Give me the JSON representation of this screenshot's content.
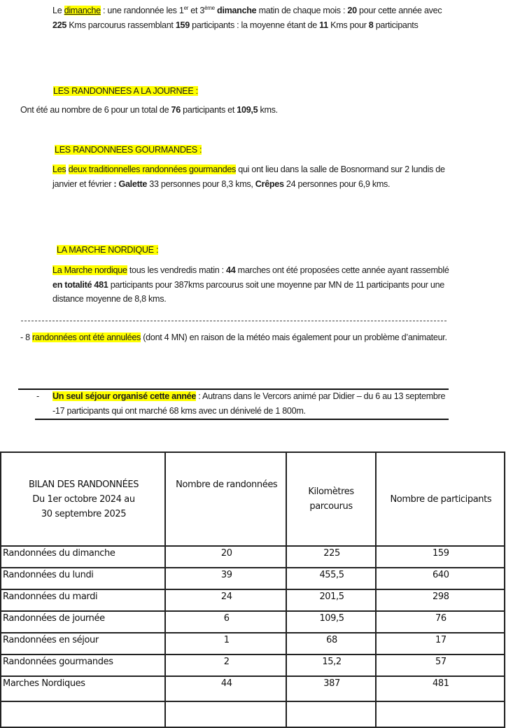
{
  "dimanche": {
    "p1": "Le ",
    "p2": "dimanche",
    "p3": " : une randonnée  les 1",
    "sup1": "er",
    "p4": " et 3",
    "sup2": "ème",
    "p5": " dimanche",
    "p6": " matin de chaque mois : ",
    "p7": "20",
    "p8": " pour cette année avec ",
    "p9": "225",
    "p10": " Kms parcourus rassemblant  ",
    "p11": "159",
    "p12": " participants : la moyenne étant de ",
    "p13": "11",
    "p14": " Kms pour  ",
    "p15": "8",
    "p16": " participants"
  },
  "journee": {
    "heading": "LES RANDONNEES A LA JOURNEE :",
    "p1": "Ont été au nombre de 6 pour un total de ",
    "p2": "76",
    "p3": " participants et ",
    "p4": "109,5",
    "p5": " kms."
  },
  "gourmandes": {
    "heading": "LES RANDONNEES GOURMANDES :",
    "p1": "Les",
    "p2": "deux traditionnelles randonnées gourmandes",
    "p3": " qui ont lieu dans la salle de Bosnormand sur 2 lundis de janvier et février ",
    "p4": ": Galette",
    "p5": " 33 personnes pour 8,3 kms, ",
    "p6": "Crêpes",
    "p7": " 24 personnes pour 6,9 kms."
  },
  "nordique": {
    "heading": "LA MARCHE NORDIQUE :",
    "p1": "La Marche nordique",
    "p2": " tous les  vendredis  matin : ",
    "p3": "44",
    "p4": " marches ont été proposées cette année ayant rassemblé   ",
    "p5": "en totalité 481",
    "p6": " participants pour 387kms parcourus soit une moyenne par MN de 11 participants pour une distance moyenne de  8,8 kms."
  },
  "annulees": {
    "p1": "- 8 ",
    "p2": "randonnées ont été annulées",
    "p3": " (dont 4 MN) en raison de la météo mais également pour un problème d’animateur."
  },
  "sejour": {
    "bullet": "-",
    "p1": "Un seul séjour organisé cette année",
    "p2": " : Autrans dans le Vercors animé par Didier – du 6 au 13 septembre -17 participants qui ont marché 68 kms avec un dénivelé de 1 800m."
  },
  "table": {
    "title_lines": [
      "BILAN DES RANDONNÉES",
      "Du 1er octobre 2024 au",
      "30 septembre 2025"
    ],
    "headers": [
      "Nombre de randonnées",
      "Kilomètres parcourus",
      "Nombre de participants"
    ],
    "rows": [
      [
        "Randonnées du dimanche",
        "20",
        "225",
        "159"
      ],
      [
        "Randonnées du lundi",
        "39",
        "455,5",
        "640"
      ],
      [
        "Randonnées du mardi",
        "24",
        "201,5",
        "298"
      ],
      [
        "Randonnées de journée",
        "6",
        "109,5",
        "76"
      ],
      [
        "Randonnées en séjour",
        "1",
        "68",
        "17"
      ],
      [
        "Randonnées gourmandes",
        "2",
        "15,2",
        "57"
      ],
      [
        "Marches Nordiques",
        "44",
        "387",
        "481"
      ]
    ]
  },
  "colors": {
    "highlight": "#ffff00",
    "text": "#1a1a1a"
  }
}
